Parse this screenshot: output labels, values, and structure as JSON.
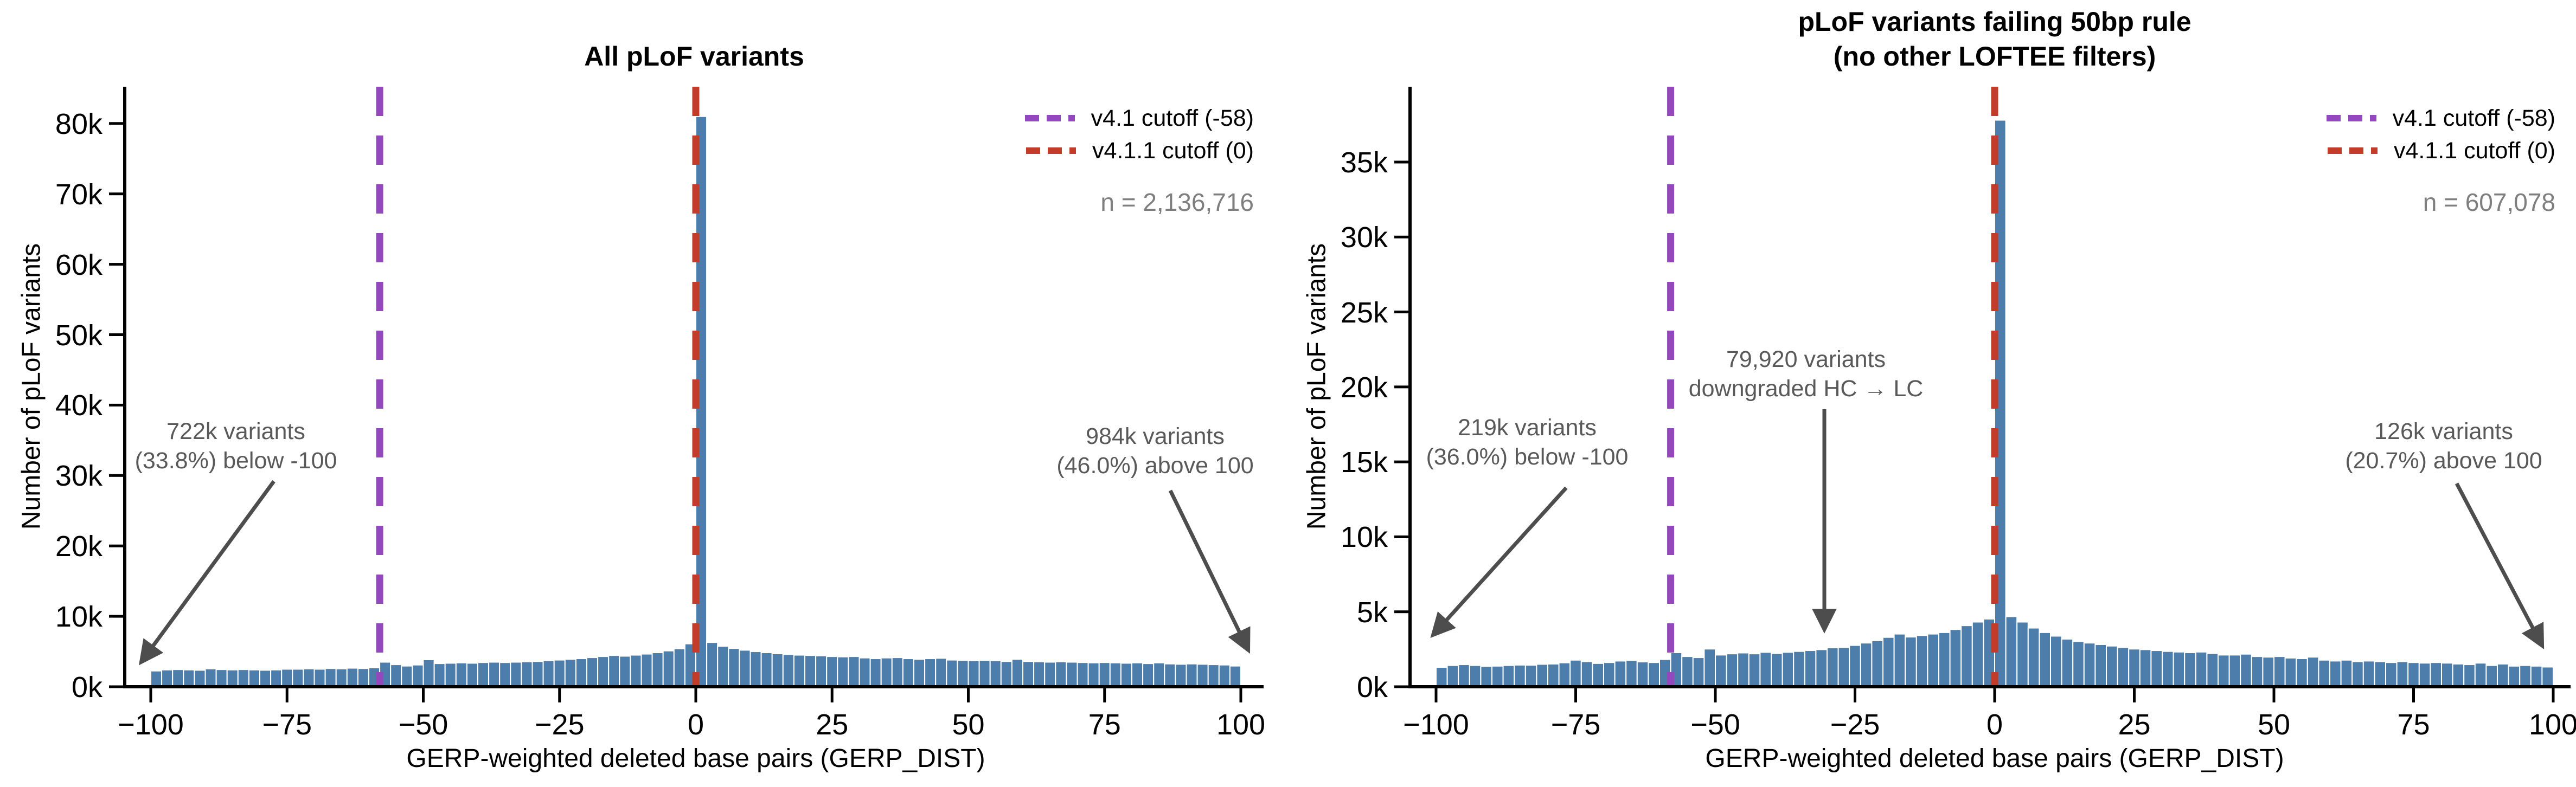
{
  "colors": {
    "bar_fill": "#4d7dab",
    "bar_edge": "#ffffff",
    "cutoff_v41_purple": "#9349bd",
    "cutoff_v411_red": "#c33b2b",
    "annotation_text": "#595959",
    "arrow": "#4d4d4d",
    "n_text": "#7f7f7f",
    "axis": "#000000"
  },
  "chart_data": [
    {
      "type": "bar",
      "title": "All pLoF variants",
      "title_lines": [
        "All pLoF variants"
      ],
      "xlabel": "GERP-weighted deleted base pairs (GERP_DIST)",
      "ylabel": "Number of pLoF variants",
      "n_label": "n = 2,136,716",
      "xlim": [
        -100,
        100
      ],
      "ylim_k": [
        0,
        85
      ],
      "x_tick_values": [
        -100,
        -75,
        -50,
        -25,
        0,
        25,
        50,
        75,
        100
      ],
      "x_tick_labels": [
        "−100",
        "−75",
        "−50",
        "−25",
        "0",
        "25",
        "50",
        "75",
        "100"
      ],
      "y_tick_values_k": [
        0,
        10,
        20,
        30,
        40,
        50,
        60,
        70,
        80
      ],
      "y_tick_labels": [
        "0k",
        "10k",
        "20k",
        "30k",
        "40k",
        "50k",
        "60k",
        "70k",
        "80k"
      ],
      "bin_start": -100,
      "bin_width": 2,
      "values_k": [
        2.25,
        2.4,
        2.45,
        2.4,
        2.35,
        2.55,
        2.45,
        2.4,
        2.45,
        2.4,
        2.35,
        2.4,
        2.5,
        2.5,
        2.55,
        2.5,
        2.6,
        2.55,
        2.65,
        2.6,
        2.7,
        3.5,
        3.15,
        2.95,
        3.1,
        3.85,
        3.3,
        3.35,
        3.4,
        3.35,
        3.45,
        3.5,
        3.45,
        3.5,
        3.55,
        3.6,
        3.7,
        3.8,
        3.9,
        4.0,
        4.15,
        4.3,
        4.45,
        4.35,
        4.5,
        4.65,
        4.85,
        5.1,
        5.4,
        6.1,
        81.0,
        6.3,
        5.75,
        5.45,
        5.2,
        5.0,
        4.85,
        4.7,
        4.6,
        4.5,
        4.45,
        4.4,
        4.3,
        4.25,
        4.3,
        4.1,
        4.0,
        4.1,
        4.15,
        4.0,
        3.9,
        4.0,
        4.05,
        3.8,
        3.75,
        3.7,
        3.75,
        3.7,
        3.6,
        3.9,
        3.6,
        3.55,
        3.5,
        3.55,
        3.5,
        3.45,
        3.4,
        3.45,
        3.4,
        3.35,
        3.4,
        3.3,
        3.4,
        3.25,
        3.2,
        3.25,
        3.2,
        3.15,
        3.1,
        2.95
      ],
      "cutoffs": {
        "v41": -58,
        "v411": 0
      },
      "legend": [
        {
          "label": "v4.1 cutoff (-58)",
          "color_key": "cutoff_v41_purple"
        },
        {
          "label": "v4.1.1 cutoff (0)",
          "color_key": "cutoff_v411_red"
        }
      ],
      "annotations": [
        {
          "id": "below-range",
          "lines": [
            "722k variants",
            "(33.8%) below -100"
          ]
        },
        {
          "id": "above-range",
          "lines": [
            "984k variants",
            "(46.0%) above 100"
          ]
        }
      ]
    },
    {
      "type": "bar",
      "title": "pLoF variants failing 50bp rule (no other LOFTEE filters)",
      "title_lines": [
        "pLoF variants failing 50bp rule",
        "(no other LOFTEE filters)"
      ],
      "xlabel": "GERP-weighted deleted base pairs (GERP_DIST)",
      "ylabel": "Number of pLoF variants",
      "n_label": "n = 607,078",
      "xlim": [
        -100,
        100
      ],
      "ylim_k": [
        0,
        40
      ],
      "x_tick_values": [
        -100,
        -75,
        -50,
        -25,
        0,
        25,
        50,
        75,
        100
      ],
      "x_tick_labels": [
        "−100",
        "−75",
        "−50",
        "−25",
        "0",
        "25",
        "50",
        "75",
        "100"
      ],
      "y_tick_values_k": [
        0,
        5,
        10,
        15,
        20,
        25,
        30,
        35
      ],
      "y_tick_labels": [
        "0k",
        "5k",
        "10k",
        "15k",
        "20k",
        "25k",
        "30k",
        "35k"
      ],
      "bin_start": -100,
      "bin_width": 2,
      "values_k": [
        1.3,
        1.42,
        1.48,
        1.42,
        1.36,
        1.38,
        1.42,
        1.45,
        1.44,
        1.5,
        1.52,
        1.6,
        1.78,
        1.68,
        1.56,
        1.62,
        1.72,
        1.76,
        1.66,
        1.62,
        1.82,
        2.28,
        2.02,
        1.95,
        2.52,
        2.12,
        2.2,
        2.26,
        2.2,
        2.3,
        2.22,
        2.3,
        2.36,
        2.42,
        2.48,
        2.6,
        2.62,
        2.76,
        2.92,
        3.08,
        3.3,
        3.52,
        3.32,
        3.42,
        3.52,
        3.62,
        3.82,
        4.08,
        4.32,
        4.52,
        37.8,
        4.68,
        4.32,
        3.92,
        3.62,
        3.38,
        3.18,
        3.02,
        2.92,
        2.82,
        2.72,
        2.62,
        2.52,
        2.48,
        2.42,
        2.36,
        2.32,
        2.28,
        2.32,
        2.22,
        2.12,
        2.12,
        2.18,
        2.02,
        1.98,
        2.02,
        1.92,
        1.88,
        1.98,
        1.78,
        1.72,
        1.78,
        1.68,
        1.72,
        1.68,
        1.62,
        1.68,
        1.62,
        1.58,
        1.62,
        1.58,
        1.52,
        1.48,
        1.58,
        1.42,
        1.52,
        1.38,
        1.42,
        1.38,
        1.32
      ],
      "cutoffs": {
        "v41": -58,
        "v411": 0
      },
      "legend": [
        {
          "label": "v4.1 cutoff (-58)",
          "color_key": "cutoff_v41_purple"
        },
        {
          "label": "v4.1.1 cutoff (0)",
          "color_key": "cutoff_v411_red"
        }
      ],
      "annotations": [
        {
          "id": "below-range",
          "lines": [
            "219k variants",
            "(36.0%) below -100"
          ]
        },
        {
          "id": "downgraded",
          "lines": [
            "79,920 variants",
            "downgraded HC → LC"
          ]
        },
        {
          "id": "above-range",
          "lines": [
            "126k variants",
            "(20.7%) above 100"
          ]
        }
      ]
    }
  ]
}
